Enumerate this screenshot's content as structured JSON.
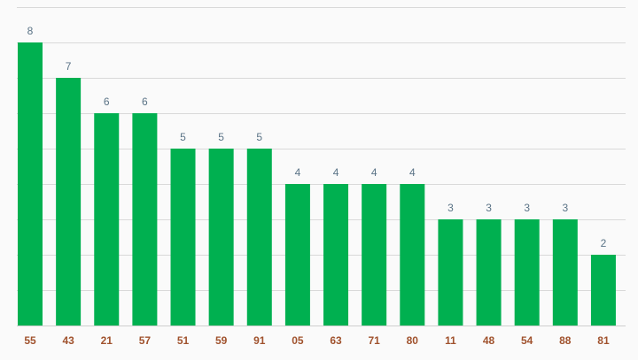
{
  "chart_data": {
    "type": "bar",
    "categories": [
      "55",
      "43",
      "21",
      "57",
      "51",
      "59",
      "91",
      "05",
      "63",
      "71",
      "80",
      "11",
      "48",
      "54",
      "88",
      "81"
    ],
    "values": [
      8,
      7,
      6,
      6,
      5,
      5,
      5,
      4,
      4,
      4,
      4,
      3,
      3,
      3,
      3,
      2
    ],
    "title": "",
    "xlabel": "",
    "ylabel": "",
    "ylim": [
      0,
      9
    ],
    "grid": true,
    "data_labels": true,
    "colors": {
      "bar": "#00b050",
      "value_label": "#5a7386",
      "tick_label": "#a0522d",
      "grid": "#d9d9d9",
      "background": "#fafafa"
    }
  }
}
